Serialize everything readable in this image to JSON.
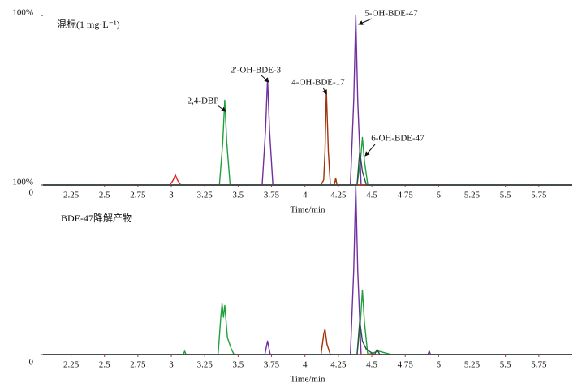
{
  "chart_data": [
    {
      "type": "line",
      "title": "混标(1 mg·L⁻¹)",
      "xlabel": "Time/min",
      "xlim": [
        2.04,
        6.0
      ],
      "xticks": [
        2.25,
        2.5,
        2.75,
        3.0,
        3.25,
        3.5,
        3.75,
        4.0,
        4.25,
        4.5,
        4.75,
        5.0,
        5.25,
        5.5,
        5.75
      ],
      "ylim": [
        0,
        100
      ],
      "yticks": [
        {
          "value": 0,
          "label": "0"
        },
        {
          "value": 100,
          "label": "100%"
        }
      ],
      "annotations": [
        "2,4-DBP",
        "2′-OH-BDE-3",
        "4-OH-BDE-17",
        "5-OH-BDE-47",
        "6-OH-BDE-47"
      ],
      "series": [
        {
          "color": "#e02020",
          "x": [
            2.04,
            2.99,
            3.015,
            3.03,
            3.045,
            3.07,
            6.0
          ],
          "values": [
            0,
            0,
            3,
            6,
            3,
            0,
            0
          ]
        },
        {
          "color": "#1fa03c",
          "x": [
            2.04,
            3.36,
            3.385,
            3.4,
            3.415,
            3.44,
            4.39,
            4.415,
            4.43,
            4.445,
            4.47,
            6.0
          ],
          "values": [
            0,
            0,
            25,
            50,
            25,
            0,
            0,
            14,
            28,
            14,
            0,
            0
          ]
        },
        {
          "color": "#7030a0",
          "x": [
            2.04,
            3.68,
            3.705,
            3.72,
            3.735,
            3.76,
            4.34,
            4.365,
            4.38,
            4.395,
            4.42,
            6.0
          ],
          "values": [
            0,
            0,
            32,
            63,
            32,
            0,
            0,
            50,
            100,
            50,
            0,
            0
          ]
        },
        {
          "color": "#a0340a",
          "x": [
            2.04,
            4.12,
            4.14,
            4.15,
            4.16,
            4.175,
            4.19,
            4.22,
            4.23,
            4.24,
            6.0
          ],
          "values": [
            0,
            0,
            3,
            20,
            56,
            20,
            0,
            0,
            4,
            0,
            0
          ]
        },
        {
          "color": "#2f4f4f",
          "x": [
            2.04,
            4.39,
            4.41,
            4.43,
            4.46,
            6.0
          ],
          "values": [
            0,
            0,
            20,
            8,
            0,
            0
          ]
        }
      ]
    },
    {
      "type": "line",
      "title": "BDE-47降解产物",
      "xlabel": "Time/min",
      "xlim": [
        2.04,
        6.0
      ],
      "xticks": [
        2.25,
        2.5,
        2.75,
        3.0,
        3.25,
        3.5,
        3.75,
        4.0,
        4.25,
        4.5,
        4.75,
        5.0,
        5.25,
        5.5,
        5.75
      ],
      "ylim": [
        0,
        100
      ],
      "yticks": [
        {
          "value": 0,
          "label": "0"
        },
        {
          "value": 100,
          "label": "100%"
        }
      ],
      "series": [
        {
          "color": "#1fa03c",
          "x": [
            2.04,
            3.09,
            3.1,
            3.11,
            3.35,
            3.37,
            3.38,
            3.39,
            3.4,
            3.42,
            3.45,
            3.47,
            4.39,
            4.415,
            4.43,
            4.445,
            4.47,
            4.55,
            4.6,
            4.65,
            6.0
          ],
          "values": [
            0,
            0,
            2,
            0,
            0,
            22,
            30,
            22,
            29,
            10,
            3,
            0,
            0,
            19,
            38,
            19,
            0,
            2,
            1,
            0,
            0
          ]
        },
        {
          "color": "#7030a0",
          "x": [
            2.04,
            3.7,
            3.72,
            3.74,
            4.34,
            4.365,
            4.38,
            4.395,
            4.42,
            4.92,
            4.93,
            4.94,
            6.0
          ],
          "values": [
            0,
            0,
            8,
            0,
            0,
            50,
            100,
            50,
            0,
            0,
            2,
            0,
            0
          ]
        },
        {
          "color": "#a0340a",
          "x": [
            2.04,
            4.12,
            4.14,
            4.15,
            4.165,
            4.19,
            6.0
          ],
          "values": [
            0,
            0,
            12,
            15,
            6,
            0,
            0
          ]
        },
        {
          "color": "#2f4f4f",
          "x": [
            2.04,
            4.39,
            4.41,
            4.43,
            4.46,
            4.52,
            4.54,
            4.56,
            6.0
          ],
          "values": [
            0,
            0,
            20,
            8,
            3,
            0,
            3,
            0,
            0
          ]
        }
      ]
    }
  ]
}
